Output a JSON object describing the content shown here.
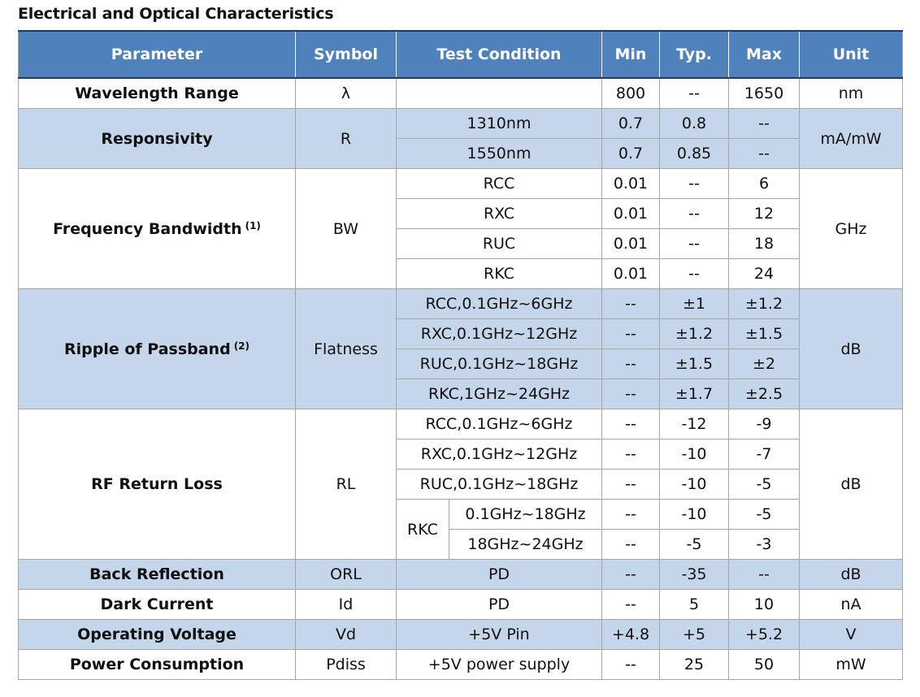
{
  "title": "Electrical and Optical Characteristics",
  "headers": {
    "parameter": "Parameter",
    "symbol": "Symbol",
    "test_condition": "Test Condition",
    "min": "Min",
    "typ": "Typ.",
    "max": "Max",
    "unit": "Unit"
  },
  "wavelength": {
    "param": "Wavelength Range",
    "symbol": "λ",
    "condition": "",
    "min": "800",
    "typ": "--",
    "max": "1650",
    "unit": "nm"
  },
  "responsivity": {
    "param": "Responsivity",
    "symbol": "R",
    "unit": "mA/mW",
    "rows": [
      {
        "condition": "1310nm",
        "min": "0.7",
        "typ": "0.8",
        "max": "--"
      },
      {
        "condition": "1550nm",
        "min": "0.7",
        "typ": "0.85",
        "max": "--"
      }
    ]
  },
  "bandwidth": {
    "param": "Frequency Bandwidth",
    "note": "(1)",
    "symbol": "BW",
    "unit": "GHz",
    "rows": [
      {
        "condition": "RCC",
        "min": "0.01",
        "typ": "--",
        "max": "6"
      },
      {
        "condition": "RXC",
        "min": "0.01",
        "typ": "--",
        "max": "12"
      },
      {
        "condition": "RUC",
        "min": "0.01",
        "typ": "--",
        "max": "18"
      },
      {
        "condition": "RKC",
        "min": "0.01",
        "typ": "--",
        "max": "24"
      }
    ]
  },
  "ripple": {
    "param": "Ripple of Passband",
    "note": "(2)",
    "symbol": "Flatness",
    "unit": "dB",
    "rows": [
      {
        "condition": "RCC,0.1GHz~6GHz",
        "min": "--",
        "typ": "±1",
        "max": "±1.2"
      },
      {
        "condition": "RXC,0.1GHz~12GHz",
        "min": "--",
        "typ": "±1.2",
        "max": "±1.5"
      },
      {
        "condition": "RUC,0.1GHz~18GHz",
        "min": "--",
        "typ": "±1.5",
        "max": "±2"
      },
      {
        "condition": "RKC,1GHz~24GHz",
        "min": "--",
        "typ": "±1.7",
        "max": "±2.5"
      }
    ]
  },
  "return_loss": {
    "param": "RF Return Loss",
    "symbol": "RL",
    "unit": "dB",
    "rows": [
      {
        "condition": "RCC,0.1GHz~6GHz",
        "min": "--",
        "typ": "-12",
        "max": "-9"
      },
      {
        "condition": "RXC,0.1GHz~12GHz",
        "min": "--",
        "typ": "-10",
        "max": "-7"
      },
      {
        "condition": "RUC,0.1GHz~18GHz",
        "min": "--",
        "typ": "-10",
        "max": "-5"
      }
    ],
    "rkc": {
      "label": "RKC",
      "rows": [
        {
          "condition": "0.1GHz~18GHz",
          "min": "--",
          "typ": "-10",
          "max": "-5"
        },
        {
          "condition": "18GHz~24GHz",
          "min": "--",
          "typ": "-5",
          "max": "-3"
        }
      ]
    }
  },
  "back_reflection": {
    "param": "Back Reflection",
    "symbol": "ORL",
    "condition": "PD",
    "min": "--",
    "typ": "-35",
    "max": "--",
    "unit": "dB"
  },
  "dark_current": {
    "param": "Dark Current",
    "symbol": "Id",
    "condition": "PD",
    "min": "--",
    "typ": "5",
    "max": "10",
    "unit": "nA"
  },
  "operating_voltage": {
    "param": "Operating Voltage",
    "symbol": "Vd",
    "condition": "+5V Pin",
    "min": "+4.8",
    "typ": "+5",
    "max": "+5.2",
    "unit": "V"
  },
  "power_consumption": {
    "param": "Power Consumption",
    "symbol": "Pdiss",
    "condition": "+5V power supply",
    "min": "--",
    "typ": "25",
    "max": "50",
    "unit": "mW"
  }
}
